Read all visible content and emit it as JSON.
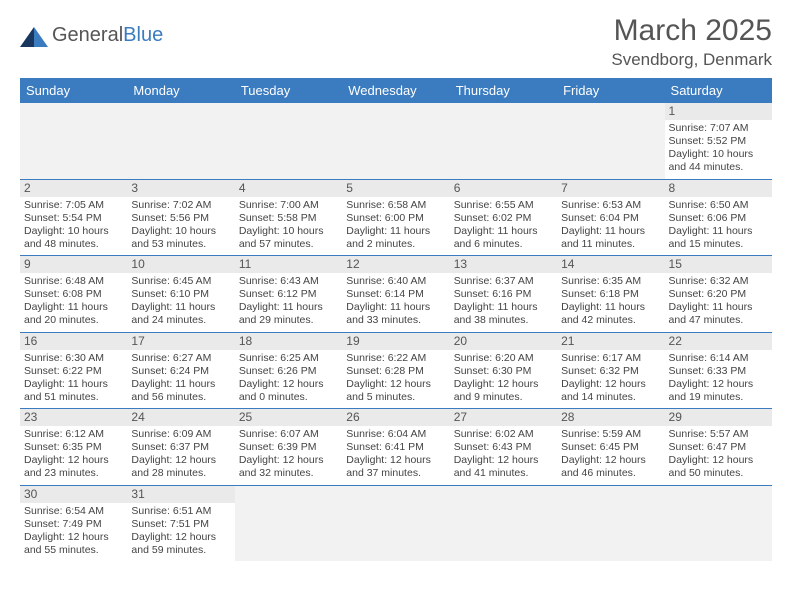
{
  "brand": {
    "name_part1": "General",
    "name_part2": "Blue"
  },
  "title": "March 2025",
  "location": "Svendborg, Denmark",
  "colors": {
    "header_bg": "#3b7bbf",
    "border": "#3b7bbf",
    "empty_bg": "#f2f2f2",
    "daynum_bg": "#eaeaea"
  },
  "weekdays": [
    "Sunday",
    "Monday",
    "Tuesday",
    "Wednesday",
    "Thursday",
    "Friday",
    "Saturday"
  ],
  "weeks": [
    [
      null,
      null,
      null,
      null,
      null,
      null,
      {
        "n": "1",
        "sunrise": "Sunrise: 7:07 AM",
        "sunset": "Sunset: 5:52 PM",
        "daylight": "Daylight: 10 hours and 44 minutes."
      }
    ],
    [
      {
        "n": "2",
        "sunrise": "Sunrise: 7:05 AM",
        "sunset": "Sunset: 5:54 PM",
        "daylight": "Daylight: 10 hours and 48 minutes."
      },
      {
        "n": "3",
        "sunrise": "Sunrise: 7:02 AM",
        "sunset": "Sunset: 5:56 PM",
        "daylight": "Daylight: 10 hours and 53 minutes."
      },
      {
        "n": "4",
        "sunrise": "Sunrise: 7:00 AM",
        "sunset": "Sunset: 5:58 PM",
        "daylight": "Daylight: 10 hours and 57 minutes."
      },
      {
        "n": "5",
        "sunrise": "Sunrise: 6:58 AM",
        "sunset": "Sunset: 6:00 PM",
        "daylight": "Daylight: 11 hours and 2 minutes."
      },
      {
        "n": "6",
        "sunrise": "Sunrise: 6:55 AM",
        "sunset": "Sunset: 6:02 PM",
        "daylight": "Daylight: 11 hours and 6 minutes."
      },
      {
        "n": "7",
        "sunrise": "Sunrise: 6:53 AM",
        "sunset": "Sunset: 6:04 PM",
        "daylight": "Daylight: 11 hours and 11 minutes."
      },
      {
        "n": "8",
        "sunrise": "Sunrise: 6:50 AM",
        "sunset": "Sunset: 6:06 PM",
        "daylight": "Daylight: 11 hours and 15 minutes."
      }
    ],
    [
      {
        "n": "9",
        "sunrise": "Sunrise: 6:48 AM",
        "sunset": "Sunset: 6:08 PM",
        "daylight": "Daylight: 11 hours and 20 minutes."
      },
      {
        "n": "10",
        "sunrise": "Sunrise: 6:45 AM",
        "sunset": "Sunset: 6:10 PM",
        "daylight": "Daylight: 11 hours and 24 minutes."
      },
      {
        "n": "11",
        "sunrise": "Sunrise: 6:43 AM",
        "sunset": "Sunset: 6:12 PM",
        "daylight": "Daylight: 11 hours and 29 minutes."
      },
      {
        "n": "12",
        "sunrise": "Sunrise: 6:40 AM",
        "sunset": "Sunset: 6:14 PM",
        "daylight": "Daylight: 11 hours and 33 minutes."
      },
      {
        "n": "13",
        "sunrise": "Sunrise: 6:37 AM",
        "sunset": "Sunset: 6:16 PM",
        "daylight": "Daylight: 11 hours and 38 minutes."
      },
      {
        "n": "14",
        "sunrise": "Sunrise: 6:35 AM",
        "sunset": "Sunset: 6:18 PM",
        "daylight": "Daylight: 11 hours and 42 minutes."
      },
      {
        "n": "15",
        "sunrise": "Sunrise: 6:32 AM",
        "sunset": "Sunset: 6:20 PM",
        "daylight": "Daylight: 11 hours and 47 minutes."
      }
    ],
    [
      {
        "n": "16",
        "sunrise": "Sunrise: 6:30 AM",
        "sunset": "Sunset: 6:22 PM",
        "daylight": "Daylight: 11 hours and 51 minutes."
      },
      {
        "n": "17",
        "sunrise": "Sunrise: 6:27 AM",
        "sunset": "Sunset: 6:24 PM",
        "daylight": "Daylight: 11 hours and 56 minutes."
      },
      {
        "n": "18",
        "sunrise": "Sunrise: 6:25 AM",
        "sunset": "Sunset: 6:26 PM",
        "daylight": "Daylight: 12 hours and 0 minutes."
      },
      {
        "n": "19",
        "sunrise": "Sunrise: 6:22 AM",
        "sunset": "Sunset: 6:28 PM",
        "daylight": "Daylight: 12 hours and 5 minutes."
      },
      {
        "n": "20",
        "sunrise": "Sunrise: 6:20 AM",
        "sunset": "Sunset: 6:30 PM",
        "daylight": "Daylight: 12 hours and 9 minutes."
      },
      {
        "n": "21",
        "sunrise": "Sunrise: 6:17 AM",
        "sunset": "Sunset: 6:32 PM",
        "daylight": "Daylight: 12 hours and 14 minutes."
      },
      {
        "n": "22",
        "sunrise": "Sunrise: 6:14 AM",
        "sunset": "Sunset: 6:33 PM",
        "daylight": "Daylight: 12 hours and 19 minutes."
      }
    ],
    [
      {
        "n": "23",
        "sunrise": "Sunrise: 6:12 AM",
        "sunset": "Sunset: 6:35 PM",
        "daylight": "Daylight: 12 hours and 23 minutes."
      },
      {
        "n": "24",
        "sunrise": "Sunrise: 6:09 AM",
        "sunset": "Sunset: 6:37 PM",
        "daylight": "Daylight: 12 hours and 28 minutes."
      },
      {
        "n": "25",
        "sunrise": "Sunrise: 6:07 AM",
        "sunset": "Sunset: 6:39 PM",
        "daylight": "Daylight: 12 hours and 32 minutes."
      },
      {
        "n": "26",
        "sunrise": "Sunrise: 6:04 AM",
        "sunset": "Sunset: 6:41 PM",
        "daylight": "Daylight: 12 hours and 37 minutes."
      },
      {
        "n": "27",
        "sunrise": "Sunrise: 6:02 AM",
        "sunset": "Sunset: 6:43 PM",
        "daylight": "Daylight: 12 hours and 41 minutes."
      },
      {
        "n": "28",
        "sunrise": "Sunrise: 5:59 AM",
        "sunset": "Sunset: 6:45 PM",
        "daylight": "Daylight: 12 hours and 46 minutes."
      },
      {
        "n": "29",
        "sunrise": "Sunrise: 5:57 AM",
        "sunset": "Sunset: 6:47 PM",
        "daylight": "Daylight: 12 hours and 50 minutes."
      }
    ],
    [
      {
        "n": "30",
        "sunrise": "Sunrise: 6:54 AM",
        "sunset": "Sunset: 7:49 PM",
        "daylight": "Daylight: 12 hours and 55 minutes."
      },
      {
        "n": "31",
        "sunrise": "Sunrise: 6:51 AM",
        "sunset": "Sunset: 7:51 PM",
        "daylight": "Daylight: 12 hours and 59 minutes."
      },
      null,
      null,
      null,
      null,
      null
    ]
  ]
}
